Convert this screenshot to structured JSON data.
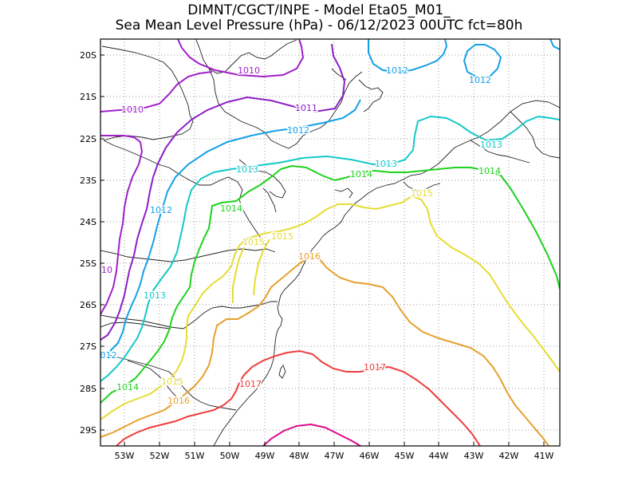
{
  "title_line1": "DIMNT/CGCT/INPE -  Model Eta05_M01_",
  "title_line2": "Sea Mean Level Pressure (hPa) - 06/12/2023 00UTC fct=80h",
  "map": {
    "lat_labels": [
      "20S",
      "21S",
      "22S",
      "23S",
      "24S",
      "25S",
      "26S",
      "27S",
      "28S",
      "29S"
    ],
    "lon_labels": [
      "53W",
      "52W",
      "51W",
      "50W",
      "49W",
      "48W",
      "47W",
      "46W",
      "45W",
      "44W",
      "43W",
      "42W",
      "41W"
    ],
    "colors": {
      "1010": "#a020c8",
      "1011": "#8c1ec8",
      "1012": "#14a0e6",
      "1013": "#14c8c8",
      "1014": "#1ed21e",
      "1015": "#e6dc32",
      "1016": "#e6a02d",
      "1017": "#f03c3c",
      "1018": "#dc0a8c"
    },
    "contour_labels": [
      {
        "id": "c1010a",
        "text": "1010",
        "level": "1010"
      },
      {
        "id": "c1010b",
        "text": "1010",
        "level": "1010"
      },
      {
        "id": "c1010c",
        "text": "10",
        "level": "1010"
      },
      {
        "id": "c1011a",
        "text": "1011",
        "level": "1011"
      },
      {
        "id": "c1012a",
        "text": "1012",
        "level": "1012"
      },
      {
        "id": "c1012b",
        "text": "1012",
        "level": "1012"
      },
      {
        "id": "c1012c",
        "text": "1012",
        "level": "1012"
      },
      {
        "id": "c1012d",
        "text": "1012",
        "level": "1012"
      },
      {
        "id": "c1012e",
        "text": "012",
        "level": "1012"
      },
      {
        "id": "c1013a",
        "text": "1013",
        "level": "1013"
      },
      {
        "id": "c1013b",
        "text": "1013",
        "level": "1013"
      },
      {
        "id": "c1013c",
        "text": "1013",
        "level": "1013"
      },
      {
        "id": "c1013d",
        "text": "1013",
        "level": "1013"
      },
      {
        "id": "c1014a",
        "text": "1014",
        "level": "1014"
      },
      {
        "id": "c1014b",
        "text": "1014",
        "level": "1014"
      },
      {
        "id": "c1014c",
        "text": "1014",
        "level": "1014"
      },
      {
        "id": "c1014d",
        "text": "1014",
        "level": "1014"
      },
      {
        "id": "c1015a",
        "text": "1015",
        "level": "1015"
      },
      {
        "id": "c1015b",
        "text": "1015",
        "level": "1015"
      },
      {
        "id": "c1015c",
        "text": "1015",
        "level": "1015"
      },
      {
        "id": "c1015d",
        "text": "1015",
        "level": "1015"
      },
      {
        "id": "c1016a",
        "text": "1016",
        "level": "1016"
      },
      {
        "id": "c1016b",
        "text": "1016",
        "level": "1016"
      },
      {
        "id": "c1017a",
        "text": "1017",
        "level": "1017"
      },
      {
        "id": "c1017b",
        "text": "1017",
        "level": "1017"
      }
    ]
  }
}
